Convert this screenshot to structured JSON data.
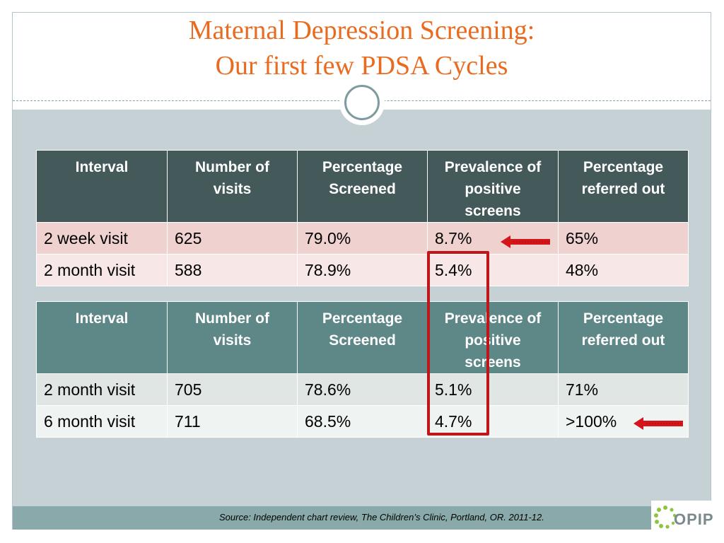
{
  "title": {
    "line1": "Maternal Depression Screening:",
    "line2": "Our first few PDSA Cycles"
  },
  "table1": {
    "headers": [
      "Interval",
      "Number of visits",
      "Percentage Screened",
      "Prevalence of positive screens",
      "Percentage referred out"
    ],
    "rows": [
      [
        "2 week visit",
        "625",
        "79.0%",
        "8.7%",
        "65%"
      ],
      [
        "2 month visit",
        "588",
        "78.9%",
        "5.4%",
        "48%"
      ]
    ]
  },
  "table2": {
    "headers": [
      "Interval",
      "Number of visits",
      "Percentage Screened",
      "Prevalence of positive screens",
      "Percentage referred out"
    ],
    "rows": [
      [
        "2 month visit",
        "705",
        "78.6%",
        "5.1%",
        "71%"
      ],
      [
        "6 month visit",
        "711",
        "68.5%",
        "4.7%",
        ">100%"
      ]
    ]
  },
  "footer": {
    "source": "Source:  Independent chart review, The Children’s Clinic, Portland, OR.  2011-12.",
    "logo_text": "OPIP"
  },
  "colors": {
    "title": "#e96b1f",
    "highlight": "#c0161a",
    "table1_header": "#44595a",
    "table2_header": "#5e8787",
    "panel": "#c6d1d6",
    "footer_bar": "#8aa9aa"
  },
  "icons": [
    "circle-ring-icon",
    "left-arrow-icon",
    "opip-logo-icon"
  ]
}
